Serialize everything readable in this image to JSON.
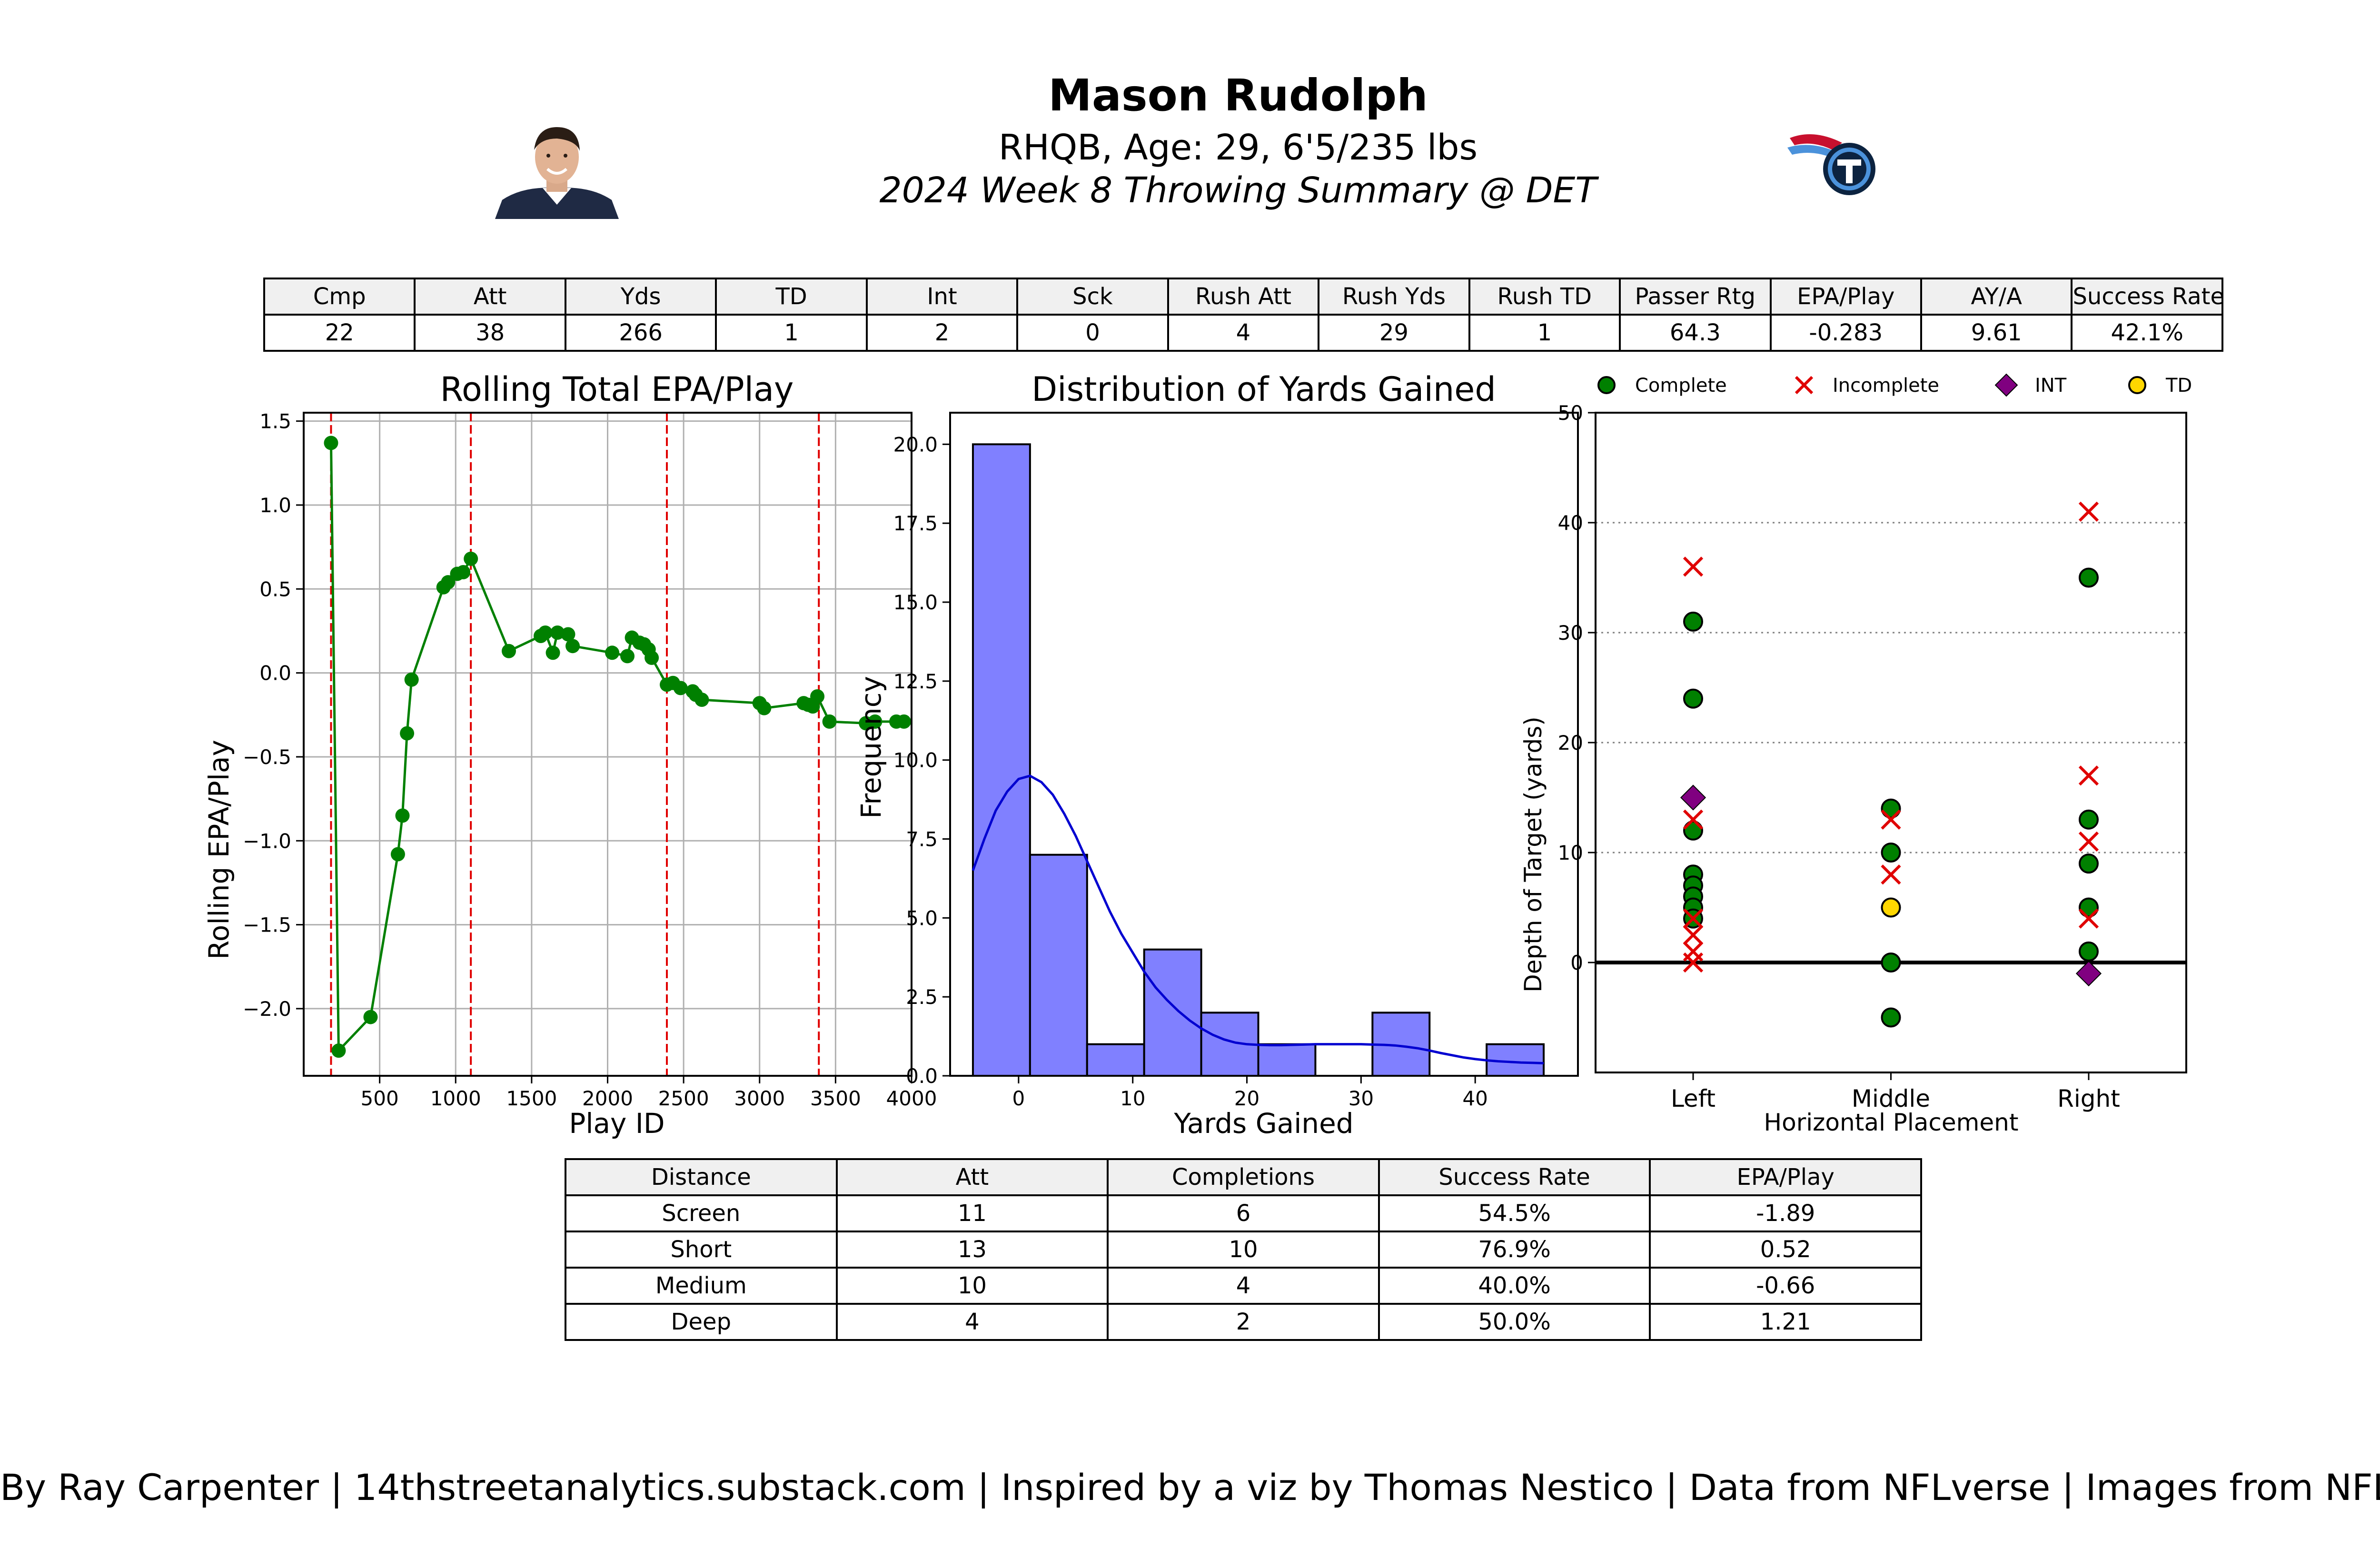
{
  "header": {
    "name": "Mason Rudolph",
    "bio": "RHQB, Age: 29, 6'5/235 lbs",
    "subtitle": "2024 Week 8 Throwing Summary @ DET"
  },
  "colors": {
    "epa_line": "#008000",
    "epa_dot": "#008000",
    "quarter_line": "#e00000",
    "hist_bar": "#8080ff",
    "kde_line": "#0000d0",
    "complete": "#008000",
    "incomplete": "#e00000",
    "int": "#800080",
    "td": "#ffd700",
    "table_header_bg": "#f0f0f0"
  },
  "top_table": {
    "headers": [
      "Cmp",
      "Att",
      "Yds",
      "TD",
      "Int",
      "Sck",
      "Rush Att",
      "Rush Yds",
      "Rush TD",
      "Passer Rtg",
      "EPA/Play",
      "AY/A",
      "Success Rate"
    ],
    "values": [
      "22",
      "38",
      "266",
      "1",
      "2",
      "0",
      "4",
      "29",
      "1",
      "64.3",
      "-0.283",
      "9.61",
      "42.1%"
    ]
  },
  "distance_table": {
    "headers": [
      "Distance",
      "Att",
      "Completions",
      "Success Rate",
      "EPA/Play"
    ],
    "rows": [
      [
        "Screen",
        "11",
        "6",
        "54.5%",
        "-1.89"
      ],
      [
        "Short",
        "13",
        "10",
        "76.9%",
        "0.52"
      ],
      [
        "Medium",
        "10",
        "4",
        "40.0%",
        "-0.66"
      ],
      [
        "Deep",
        "4",
        "2",
        "50.0%",
        "1.21"
      ]
    ]
  },
  "footer": "By Ray Carpenter | 14thstreetanalytics.substack.com | Inspired by a viz by Thomas Nestico | Data from NFLverse | Images from NFL.com",
  "chart_data": [
    {
      "type": "line",
      "title": "Rolling Total EPA/Play",
      "xlabel": "Play ID",
      "ylabel": "Rolling EPA/Play",
      "xlim": [
        0,
        4000
      ],
      "ylim": [
        -2.4,
        1.55
      ],
      "grid": true,
      "xticks": [
        500,
        1000,
        1500,
        2000,
        2500,
        3000,
        3500,
        4000
      ],
      "yticks": [
        -2.0,
        -1.5,
        -1.0,
        -0.5,
        0.0,
        0.5,
        1.0,
        1.5
      ],
      "ytick_labels": [
        "−2.0",
        "−1.5",
        "−1.0",
        "−0.5",
        "0.0",
        "0.5",
        "1.0",
        "1.5"
      ],
      "vlines": [
        180,
        1100,
        2390,
        3390
      ],
      "x": [
        180,
        230,
        440,
        620,
        650,
        680,
        710,
        920,
        950,
        1010,
        1050,
        1100,
        1350,
        1560,
        1590,
        1640,
        1670,
        1740,
        1770,
        2030,
        2130,
        2160,
        2210,
        2240,
        2270,
        2290,
        2390,
        2430,
        2480,
        2560,
        2580,
        2620,
        3000,
        3030,
        3290,
        3320,
        3350,
        3380,
        3460,
        3700,
        3760,
        3900,
        3950
      ],
      "y": [
        1.37,
        -2.25,
        -2.05,
        -1.08,
        -0.85,
        -0.36,
        -0.04,
        0.51,
        0.54,
        0.59,
        0.6,
        0.68,
        0.13,
        0.22,
        0.24,
        0.12,
        0.24,
        0.23,
        0.16,
        0.12,
        0.1,
        0.21,
        0.18,
        0.17,
        0.14,
        0.09,
        -0.07,
        -0.06,
        -0.09,
        -0.11,
        -0.13,
        -0.16,
        -0.18,
        -0.21,
        -0.18,
        -0.19,
        -0.2,
        -0.14,
        -0.29,
        -0.3,
        -0.29,
        -0.29,
        -0.29
      ]
    },
    {
      "type": "bar",
      "subtype": "histogram",
      "title": "Distribution of Yards Gained",
      "xlabel": "Yards Gained",
      "ylabel": "Frequency",
      "xlim": [
        -6,
        49
      ],
      "ylim": [
        0,
        21
      ],
      "xticks": [
        0,
        10,
        20,
        30,
        40
      ],
      "yticks": [
        0.0,
        2.5,
        5.0,
        7.5,
        10.0,
        12.5,
        15.0,
        17.5,
        20.0
      ],
      "bin_edges": [
        -4,
        1,
        6,
        11,
        16,
        21,
        26,
        31,
        36,
        41,
        46
      ],
      "values": [
        20,
        7,
        1,
        4,
        2,
        1,
        0,
        2,
        0,
        1
      ],
      "kde_x": [
        -4,
        -3,
        -2,
        -1,
        0,
        1,
        2,
        3,
        4,
        5,
        6,
        7,
        8,
        9,
        10,
        11,
        12,
        13,
        14,
        15,
        16,
        17,
        18,
        19,
        20,
        21,
        22,
        23,
        24,
        25,
        26,
        27,
        28,
        29,
        30,
        31,
        32,
        33,
        34,
        35,
        36,
        37,
        38,
        39,
        40,
        41,
        42,
        43,
        44,
        45,
        46
      ],
      "kde_y": [
        6.5,
        7.5,
        8.4,
        9.0,
        9.4,
        9.5,
        9.3,
        8.9,
        8.3,
        7.6,
        6.8,
        6.0,
        5.2,
        4.5,
        3.9,
        3.3,
        2.8,
        2.4,
        2.05,
        1.75,
        1.5,
        1.3,
        1.15,
        1.05,
        1.0,
        0.98,
        0.97,
        0.97,
        0.98,
        0.99,
        1.0,
        1.0,
        1.0,
        1.0,
        1.0,
        0.99,
        0.98,
        0.96,
        0.92,
        0.87,
        0.8,
        0.72,
        0.65,
        0.58,
        0.53,
        0.49,
        0.46,
        0.44,
        0.42,
        0.41,
        0.4
      ]
    },
    {
      "type": "scatter",
      "title": "",
      "xlabel": "Horizontal Placement",
      "ylabel": "Depth of Target (yards)",
      "categories": [
        "Left",
        "Middle",
        "Right"
      ],
      "ylim": [
        -10,
        50
      ],
      "yticks": [
        0,
        10,
        20,
        30,
        40,
        50
      ],
      "grid": "horizontal-dotted",
      "legend": [
        "Complete",
        "Incomplete",
        "INT",
        "TD"
      ],
      "legend_placement": "top",
      "series": [
        {
          "name": "Complete",
          "points": [
            [
              0,
              31
            ],
            [
              0,
              24
            ],
            [
              0,
              12
            ],
            [
              0,
              8
            ],
            [
              0,
              7
            ],
            [
              0,
              6
            ],
            [
              0,
              5
            ],
            [
              0,
              4
            ],
            [
              1,
              14
            ],
            [
              1,
              10
            ],
            [
              1,
              0
            ],
            [
              1,
              -5
            ],
            [
              2,
              35
            ],
            [
              2,
              13
            ],
            [
              2,
              9
            ],
            [
              2,
              5
            ],
            [
              2,
              1
            ]
          ]
        },
        {
          "name": "Incomplete",
          "points": [
            [
              0,
              36
            ],
            [
              0,
              13
            ],
            [
              0,
              4
            ],
            [
              0,
              2.5
            ],
            [
              0,
              1
            ],
            [
              0,
              0
            ],
            [
              1,
              13
            ],
            [
              1,
              8
            ],
            [
              2,
              41
            ],
            [
              2,
              17
            ],
            [
              2,
              11
            ],
            [
              2,
              4
            ]
          ]
        },
        {
          "name": "INT",
          "points": [
            [
              0,
              15
            ],
            [
              2,
              -1
            ]
          ]
        },
        {
          "name": "TD",
          "points": [
            [
              1,
              5
            ]
          ]
        }
      ]
    }
  ]
}
